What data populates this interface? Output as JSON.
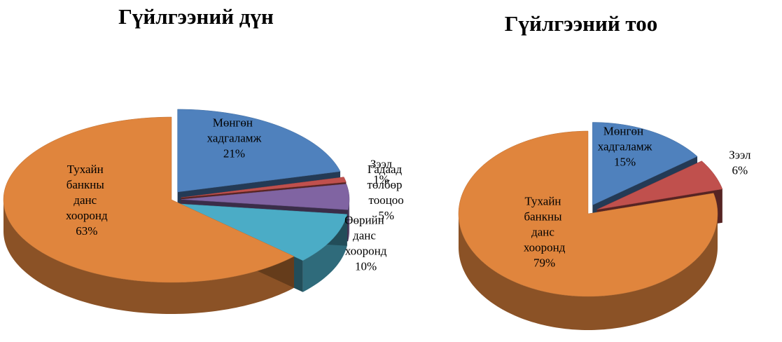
{
  "chart_data": [
    {
      "type": "pie",
      "title": "Гүйлгээний дүн",
      "categories": [
        "Мөнгөн хадгаламж",
        "Зээл",
        "Гадаад төлбөр тооцоо",
        "Өөрийн данс хооронд",
        "Тухайн банкны данс хооронд"
      ],
      "values": [
        21,
        1,
        5,
        10,
        63
      ],
      "value_labels": [
        "21%",
        "1%",
        "5%",
        "10%",
        "63%"
      ],
      "colors": [
        "#4f81bd",
        "#c0504d",
        "#8064a2",
        "#4bacc6",
        "#e0853d"
      ]
    },
    {
      "type": "pie",
      "title": "Гүйлгээний тоо",
      "categories": [
        "Мөнгөн хадгаламж",
        "Зээл",
        "Тухайн банкны данс хооронд"
      ],
      "values": [
        15,
        6,
        79
      ],
      "value_labels": [
        "15%",
        "6%",
        "79%"
      ],
      "colors": [
        "#4f81bd",
        "#c0504d",
        "#e0853d"
      ]
    }
  ]
}
